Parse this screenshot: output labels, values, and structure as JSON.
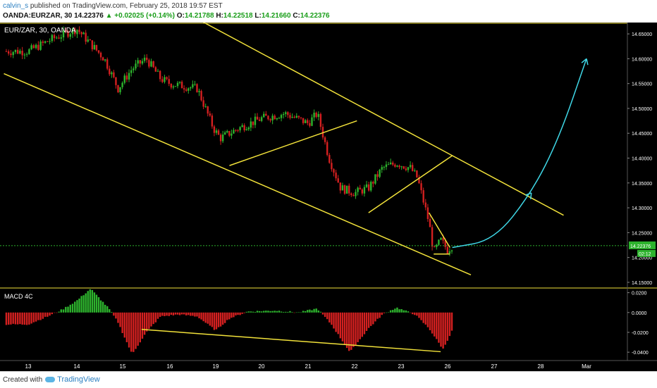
{
  "header": {
    "author": "calvin_s",
    "published_text": "published on TradingView.com, February 25, 2018 19:57 EST",
    "symbol": "OANDA:EURZAR, 30",
    "last": "14.22376",
    "change": "▲ +0.02025 (+0.14%)",
    "open_label": "O:",
    "open": "14.21788",
    "high_label": "H:",
    "high": "14.22518",
    "low_label": "L:",
    "low": "14.21660",
    "close_label": "C:",
    "close": "14.22376"
  },
  "footer": {
    "created_with": "Created with",
    "brand": "TradingView"
  },
  "colors": {
    "background": "#000000",
    "candle_up": "#2db32d",
    "candle_down": "#d42020",
    "trendline": "#f2e23a",
    "projection": "#3fd7e6",
    "price_line": "#2db32d",
    "macd_up": "#2db32d",
    "macd_down": "#d42020"
  },
  "chart_data": [
    {
      "type": "candlestick",
      "legend": "EUR/ZAR, 30, OANDA",
      "x_tick_labels": [
        "13",
        "14",
        "15",
        "16",
        "19",
        "20",
        "21",
        "22",
        "23",
        "26",
        "27",
        "28",
        "Mar"
      ],
      "y_tick_labels": [
        "14.15000",
        "14.20000",
        "14.25000",
        "14.30000",
        "14.35000",
        "14.40000",
        "14.45000",
        "14.50000",
        "14.55000",
        "14.60000",
        "14.65000"
      ],
      "ylim": [
        14.14,
        14.67
      ],
      "last_price": "14.22376",
      "countdown": "02:12",
      "bar_interval": "30",
      "price_path": [
        {
          "x": 0.0,
          "y": 14.615
        },
        {
          "x": 0.5,
          "y": 14.64
        },
        {
          "x": 1.0,
          "y": 14.66
        },
        {
          "x": 1.6,
          "y": 14.6
        },
        {
          "x": 1.9,
          "y": 14.54
        },
        {
          "x": 2.2,
          "y": 14.58
        },
        {
          "x": 2.5,
          "y": 14.6
        },
        {
          "x": 2.8,
          "y": 14.56
        },
        {
          "x": 3.0,
          "y": 14.55
        },
        {
          "x": 3.6,
          "y": 14.54
        },
        {
          "x": 3.95,
          "y": 14.46
        },
        {
          "x": 4.1,
          "y": 14.44
        },
        {
          "x": 4.5,
          "y": 14.46
        },
        {
          "x": 5.0,
          "y": 14.48
        },
        {
          "x": 5.5,
          "y": 14.49
        },
        {
          "x": 6.0,
          "y": 14.47
        },
        {
          "x": 6.2,
          "y": 14.49
        },
        {
          "x": 6.45,
          "y": 14.4
        },
        {
          "x": 6.7,
          "y": 14.34
        },
        {
          "x": 7.0,
          "y": 14.33
        },
        {
          "x": 7.3,
          "y": 14.34
        },
        {
          "x": 7.6,
          "y": 14.38
        },
        {
          "x": 7.9,
          "y": 14.39
        },
        {
          "x": 8.2,
          "y": 14.38
        },
        {
          "x": 8.35,
          "y": 14.36
        },
        {
          "x": 8.6,
          "y": 14.27
        },
        {
          "x": 8.7,
          "y": 14.21
        },
        {
          "x": 8.85,
          "y": 14.235
        },
        {
          "x": 9.0,
          "y": 14.215
        },
        {
          "x": 9.1,
          "y": 14.224
        }
      ],
      "trendlines": [
        {
          "name": "upper-channel",
          "points": [
            [
              3.6,
              14.68
            ],
            [
              11.5,
              14.285
            ]
          ]
        },
        {
          "name": "lower-channel",
          "points": [
            [
              -0.5,
              14.57
            ],
            [
              9.5,
              14.165
            ]
          ]
        },
        {
          "name": "wedge-1",
          "points": [
            [
              4.3,
              14.385
            ],
            [
              7.05,
              14.475
            ]
          ]
        },
        {
          "name": "wedge-2",
          "points": [
            [
              7.3,
              14.29
            ],
            [
              9.1,
              14.405
            ]
          ]
        },
        {
          "name": "flag-upper",
          "points": [
            [
              8.6,
              14.29
            ],
            [
              9.05,
              14.22
            ]
          ]
        },
        {
          "name": "flag-base",
          "points": [
            [
              8.7,
              14.207
            ],
            [
              9.05,
              14.207
            ]
          ]
        }
      ],
      "projection": [
        [
          9.1,
          14.22
        ],
        [
          10.0,
          14.235
        ],
        [
          10.8,
          14.33
        ],
        [
          11.4,
          14.44
        ],
        [
          12.0,
          14.6
        ]
      ]
    },
    {
      "type": "bar",
      "legend": "MACD 4C",
      "y_tick_labels": [
        "0.0200",
        "0.0000",
        "-0.0200",
        "-0.0400"
      ],
      "ylim": [
        -0.047,
        0.024
      ],
      "profile": [
        {
          "x": 0.0,
          "v": -0.012
        },
        {
          "x": 0.4,
          "v": -0.004
        },
        {
          "x": 0.7,
          "v": 0.003
        },
        {
          "x": 1.0,
          "v": 0.012
        },
        {
          "x": 1.3,
          "v": 0.024
        },
        {
          "x": 1.7,
          "v": 0.004
        },
        {
          "x": 1.9,
          "v": -0.01
        },
        {
          "x": 2.2,
          "v": -0.042
        },
        {
          "x": 2.5,
          "v": -0.02
        },
        {
          "x": 2.8,
          "v": -0.004
        },
        {
          "x": 3.2,
          "v": -0.002
        },
        {
          "x": 3.6,
          "v": -0.004
        },
        {
          "x": 4.0,
          "v": -0.018
        },
        {
          "x": 4.3,
          "v": -0.006
        },
        {
          "x": 4.7,
          "v": 0.001
        },
        {
          "x": 5.3,
          "v": 0.002
        },
        {
          "x": 5.8,
          "v": 0.0
        },
        {
          "x": 6.2,
          "v": 0.004
        },
        {
          "x": 6.5,
          "v": -0.012
        },
        {
          "x": 6.9,
          "v": -0.04
        },
        {
          "x": 7.3,
          "v": -0.016
        },
        {
          "x": 7.6,
          "v": -0.002
        },
        {
          "x": 7.9,
          "v": 0.005
        },
        {
          "x": 8.3,
          "v": -0.002
        },
        {
          "x": 8.6,
          "v": -0.016
        },
        {
          "x": 8.9,
          "v": -0.037
        },
        {
          "x": 9.1,
          "v": -0.018
        }
      ],
      "trendlines": [
        {
          "name": "macd-divergence",
          "points": [
            [
              2.4,
              -0.017
            ],
            [
              8.85,
              -0.0395
            ]
          ]
        }
      ]
    }
  ]
}
